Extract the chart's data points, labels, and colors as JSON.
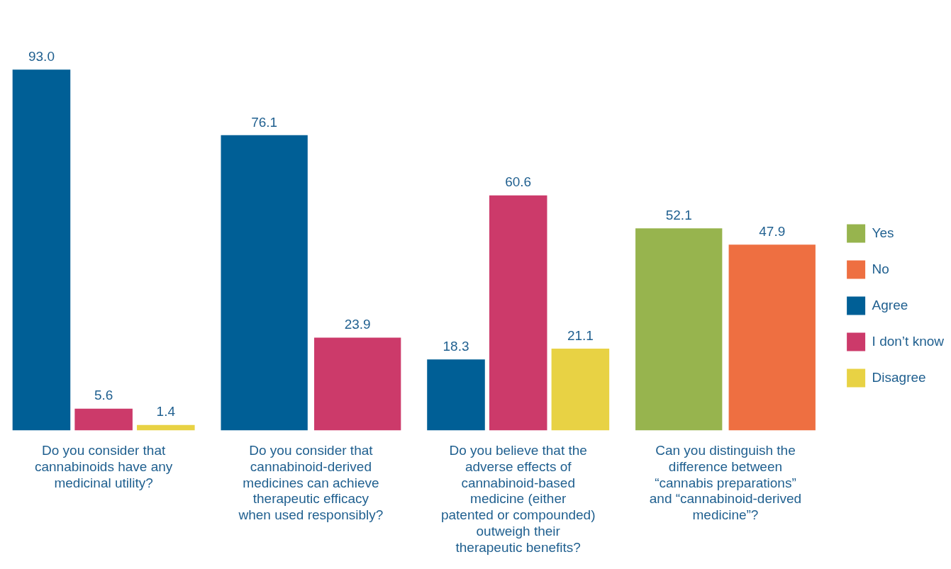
{
  "chart_data": {
    "type": "bar",
    "categories": [
      "Do you consider that cannabinoids have any medicinal utility?",
      "Do you consider that cannabinoid-derived medicines can achieve therapeutic efficacy when used responsibly?",
      "Do you believe that the adverse effects of cannabinoid-based medicine (either patented or compounded) outweigh their therapeutic benefits?",
      "Can you distinguish the difference between “cannabis preparations” and “cannabinoid-derived medicine”?"
    ],
    "series": [
      {
        "name": "Yes",
        "color": "#97b44e",
        "values": [
          null,
          null,
          null,
          52.1
        ],
        "value_labels": [
          null,
          null,
          null,
          "52.1"
        ]
      },
      {
        "name": "No",
        "color": "#ee6f41",
        "values": [
          null,
          null,
          null,
          47.9
        ],
        "value_labels": [
          null,
          null,
          null,
          "47.9"
        ]
      },
      {
        "name": "Agree",
        "color": "#005f96",
        "values": [
          93.0,
          76.1,
          18.3,
          null
        ],
        "value_labels": [
          "93.0",
          "76.1",
          "18.3",
          null
        ]
      },
      {
        "name": "I don’t know",
        "color": "#cc3a6a",
        "values": [
          5.6,
          23.9,
          60.6,
          null
        ],
        "value_labels": [
          "5.6",
          "23.9",
          "60.6",
          null
        ]
      },
      {
        "name": "Disagree",
        "color": "#e8d244",
        "values": [
          1.4,
          null,
          21.1,
          null
        ],
        "value_labels": [
          "1.4",
          null,
          "21.1",
          null
        ]
      }
    ],
    "grid": false,
    "legend": "right"
  }
}
